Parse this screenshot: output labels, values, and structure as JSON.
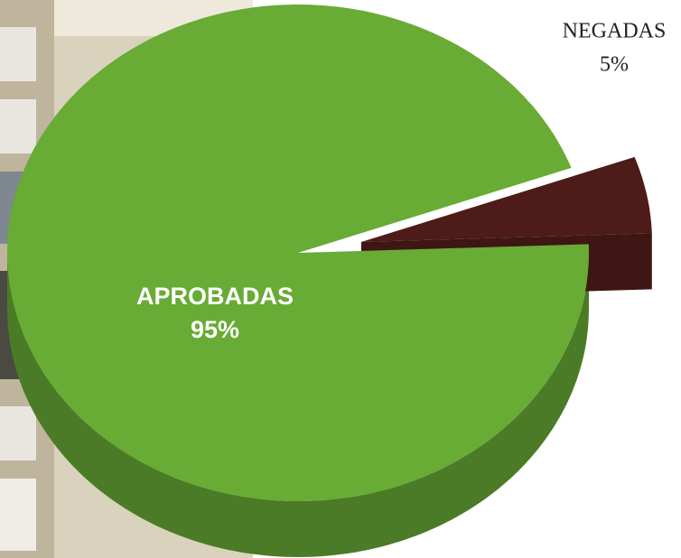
{
  "chart_data": {
    "type": "pie",
    "categories": [
      "APROBADAS",
      "NEGADAS"
    ],
    "values": [
      95,
      5
    ],
    "value_labels": [
      "95%",
      "5%"
    ],
    "colors": [
      "#68ab35",
      "#4d1b18"
    ]
  }
}
